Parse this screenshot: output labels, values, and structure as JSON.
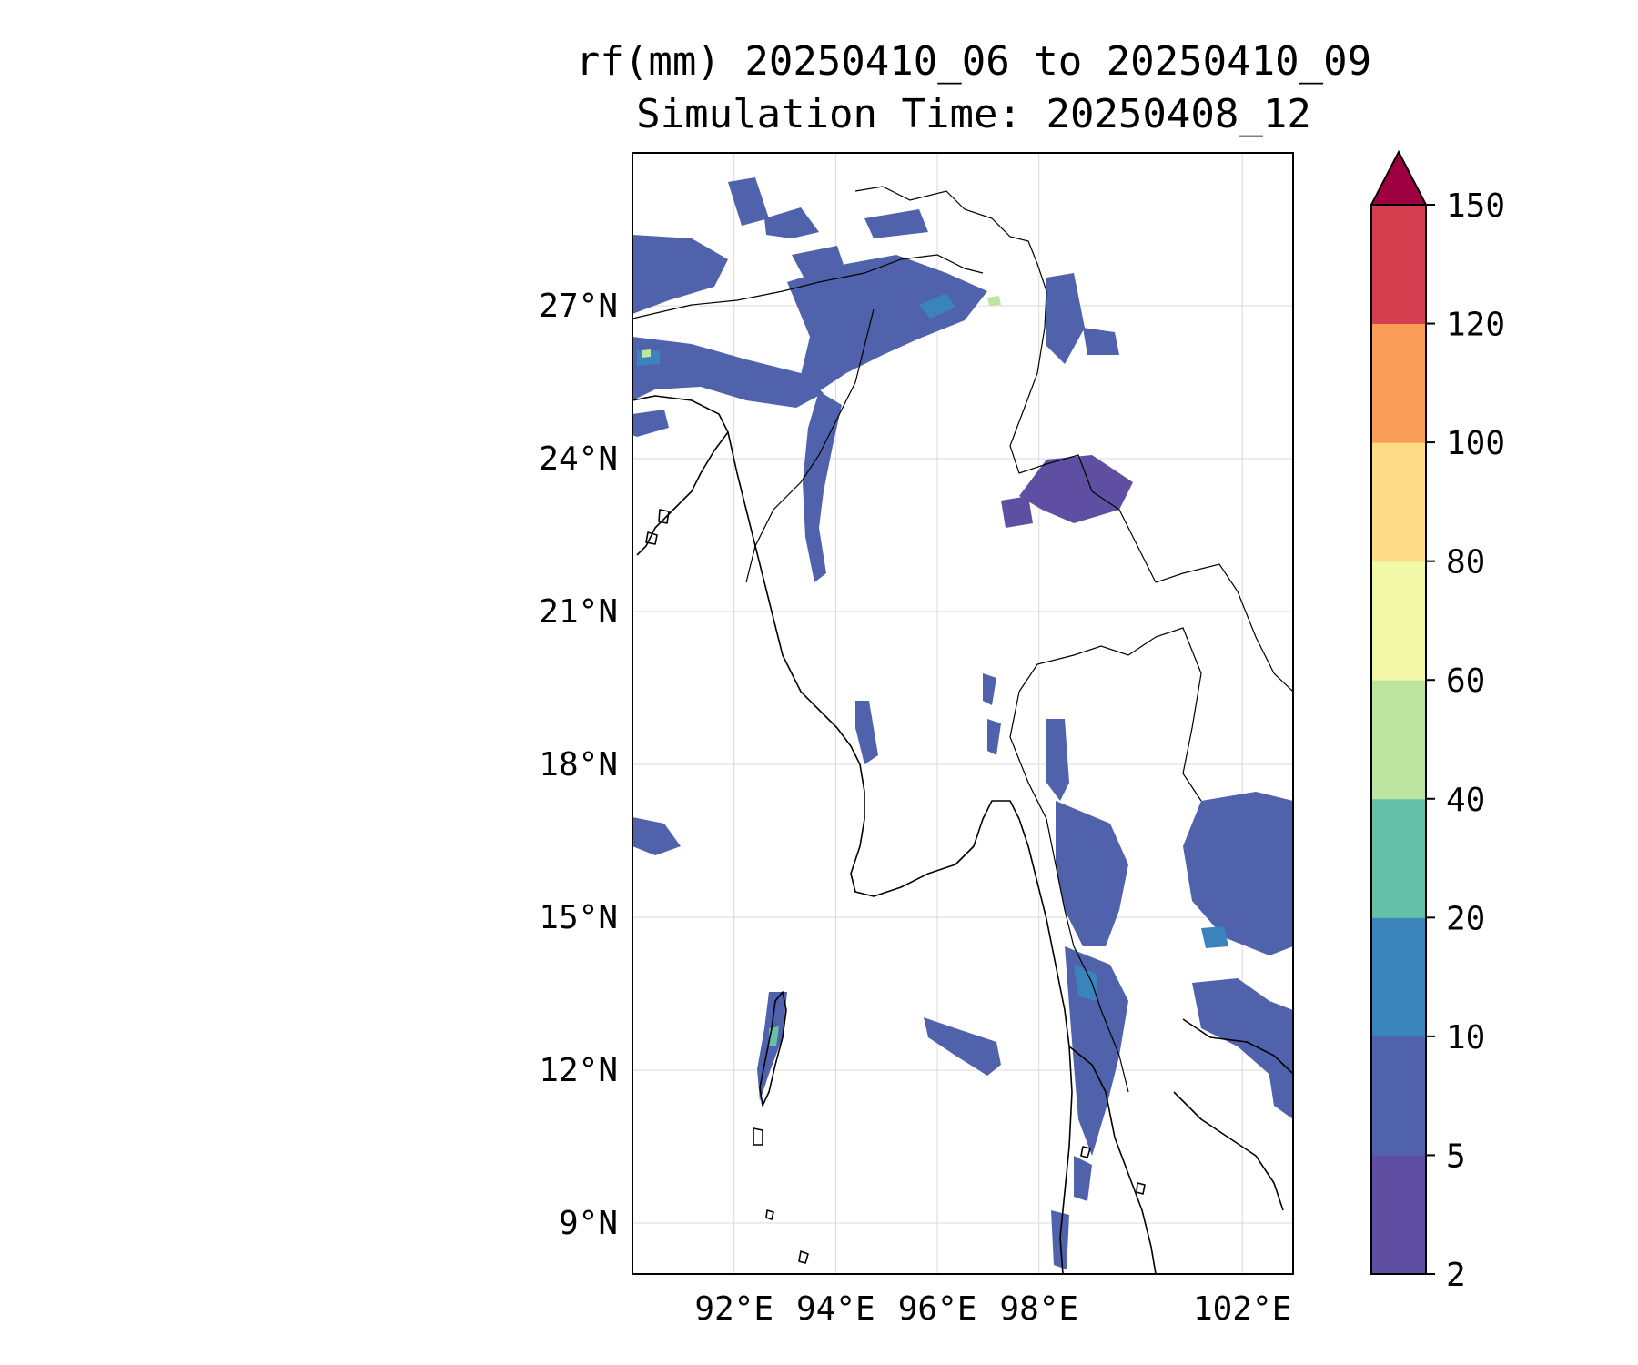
{
  "title": {
    "line1": "rf(mm) 20250410_06 to 20250410_09",
    "line2": "Simulation Time: 20250408_12"
  },
  "map": {
    "lat_range": [
      8,
      30
    ],
    "lon_range": [
      90,
      103
    ],
    "lat_ticks": [
      "27°N",
      "24°N",
      "21°N",
      "18°N",
      "15°N",
      "12°N",
      "9°N"
    ],
    "lon_ticks": [
      "92°E",
      "94°E",
      "96°E",
      "98°E",
      "102°E"
    ],
    "grid": true
  },
  "colorbar": {
    "levels": [
      "2",
      "5",
      "10",
      "20",
      "40",
      "60",
      "80",
      "100",
      "120",
      "150"
    ],
    "colors": [
      "#5e4fa2",
      "#4f62ab",
      "#3b83bb",
      "#64c0a6",
      "#bde5a0",
      "#f1f8a8",
      "#fddc88",
      "#f99d59",
      "#d53e4f",
      "#9e0142"
    ],
    "extend": "max"
  }
}
